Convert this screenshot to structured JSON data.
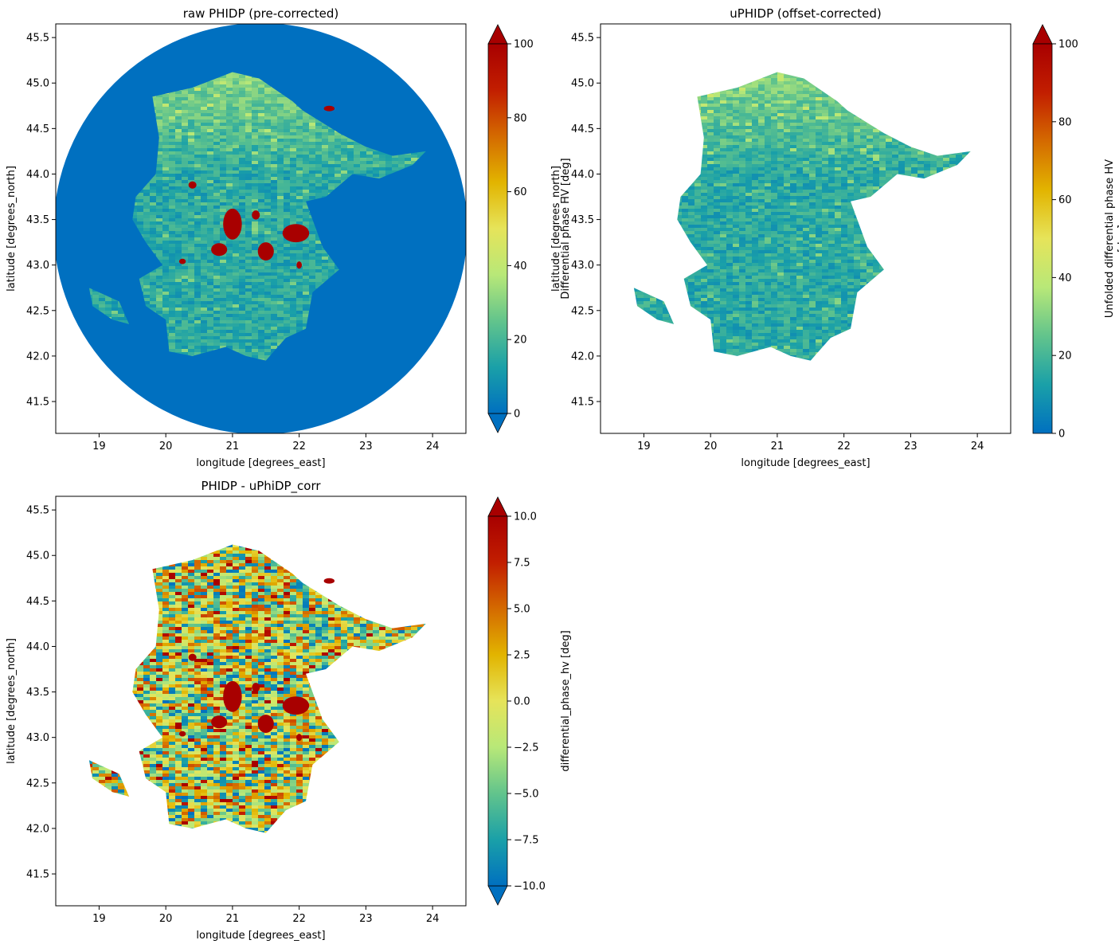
{
  "chart_data": [
    {
      "type": "heatmap",
      "title": "raw PHIDP (pre-corrected)",
      "xlabel": "longitude [degrees_east]",
      "ylabel": "latitude [degrees_north]",
      "xlim": [
        18.35,
        24.5
      ],
      "ylim": [
        41.15,
        45.65
      ],
      "xticks": [
        19,
        20,
        21,
        22,
        23,
        24
      ],
      "yticks": [
        41.5,
        42.0,
        42.5,
        43.0,
        43.5,
        44.0,
        44.5,
        45.0,
        45.5
      ],
      "xtick_labels": [
        "19",
        "20",
        "21",
        "22",
        "23",
        "24"
      ],
      "ytick_labels": [
        "41.5",
        "42.0",
        "42.5",
        "43.0",
        "43.5",
        "44.0",
        "44.5",
        "45.0",
        "45.5"
      ],
      "radar_center": {
        "lon": 21.42,
        "lat": 43.4
      },
      "background_fill_value": 0,
      "colorbar": {
        "label": "Differential phase HV [deg]",
        "vmin": 0,
        "vmax": 100,
        "extend": "both",
        "ticks": [
          0,
          20,
          40,
          60,
          80,
          100
        ],
        "tick_labels": [
          "0",
          "20",
          "40",
          "60",
          "80",
          "100"
        ],
        "colormap": [
          "#0070c0",
          "#1aa0a8",
          "#62c48c",
          "#b8e878",
          "#e6e45a",
          "#e2b400",
          "#d46a00",
          "#c21e00",
          "#a80000"
        ]
      }
    },
    {
      "type": "heatmap",
      "title": "uPHIDP (offset-corrected)",
      "xlabel": "longitude [degrees_east]",
      "ylabel": "latitude [degrees_north]",
      "xlim": [
        18.35,
        24.5
      ],
      "ylim": [
        41.15,
        45.65
      ],
      "xticks": [
        19,
        20,
        21,
        22,
        23,
        24
      ],
      "yticks": [
        41.5,
        42.0,
        42.5,
        43.0,
        43.5,
        44.0,
        44.5,
        45.0,
        45.5
      ],
      "xtick_labels": [
        "19",
        "20",
        "21",
        "22",
        "23",
        "24"
      ],
      "ytick_labels": [
        "41.5",
        "42.0",
        "42.5",
        "43.0",
        "43.5",
        "44.0",
        "44.5",
        "45.0",
        "45.5"
      ],
      "colorbar": {
        "label_lines": [
          "Unfolded differential phase HV",
          "[deg]"
        ],
        "vmin": 0,
        "vmax": 100,
        "extend": "max",
        "ticks": [
          0,
          20,
          40,
          60,
          80,
          100
        ],
        "tick_labels": [
          "0",
          "20",
          "40",
          "60",
          "80",
          "100"
        ],
        "colormap": [
          "#0070c0",
          "#1aa0a8",
          "#62c48c",
          "#b8e878",
          "#e6e45a",
          "#e2b400",
          "#d46a00",
          "#c21e00",
          "#a80000"
        ]
      }
    },
    {
      "type": "heatmap",
      "title": "PHIDP - uPhiDP_corr",
      "xlabel": "longitude [degrees_east]",
      "ylabel": "latitude [degrees_north]",
      "xlim": [
        18.35,
        24.5
      ],
      "ylim": [
        41.15,
        45.65
      ],
      "xticks": [
        19,
        20,
        21,
        22,
        23,
        24
      ],
      "yticks": [
        41.5,
        42.0,
        42.5,
        43.0,
        43.5,
        44.0,
        44.5,
        45.0,
        45.5
      ],
      "xtick_labels": [
        "19",
        "20",
        "21",
        "22",
        "23",
        "24"
      ],
      "ytick_labels": [
        "41.5",
        "42.0",
        "42.5",
        "43.0",
        "43.5",
        "44.0",
        "44.5",
        "45.0",
        "45.5"
      ],
      "colorbar": {
        "label": "differential_phase_hv [deg]",
        "vmin": -10,
        "vmax": 10,
        "extend": "both",
        "ticks": [
          -10,
          -7.5,
          -5,
          -2.5,
          0,
          2.5,
          5,
          7.5,
          10
        ],
        "tick_labels": [
          "−10.0",
          "−7.5",
          "−5.0",
          "−2.5",
          "0.0",
          "2.5",
          "5.0",
          "7.5",
          "10.0"
        ],
        "colormap": [
          "#0070c0",
          "#1aa0a8",
          "#62c48c",
          "#b8e878",
          "#e6e45a",
          "#e2b400",
          "#d46a00",
          "#c21e00",
          "#a80000"
        ]
      }
    }
  ]
}
